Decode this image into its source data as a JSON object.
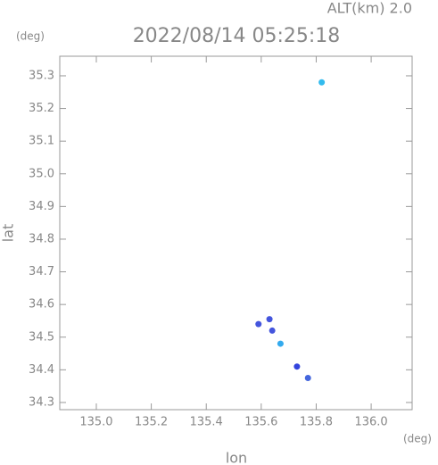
{
  "chart_data": {
    "type": "scatter",
    "annotation": "ALT(km) 2.0",
    "title": "2022/08/14 05:25:18",
    "y_unit": "(deg)",
    "x_unit": "(deg)",
    "xlabel": "lon",
    "ylabel": "lat",
    "x": [
      135.82,
      135.59,
      135.64,
      135.63,
      135.67,
      135.73,
      135.77
    ],
    "values": [
      35.28,
      34.54,
      34.52,
      34.555,
      34.48,
      34.41,
      34.375
    ],
    "colors": [
      "#33bbee",
      "#4455dd",
      "#4455dd",
      "#4455dd",
      "#33aaee",
      "#3344dd",
      "#4466dd"
    ],
    "xlim": [
      134.867,
      136.149
    ],
    "ylim": [
      34.278,
      35.36
    ],
    "xticks": [
      {
        "value": 135,
        "label": "135.0"
      },
      135.2,
      135.4,
      135.6,
      135.8,
      {
        "value": 136,
        "label": "136.0"
      }
    ],
    "yticks": [
      34.3,
      34.4,
      34.5,
      34.6,
      34.7,
      34.8,
      34.9,
      {
        "value": 35,
        "label": "35.0"
      },
      35.1,
      35.2,
      35.3
    ]
  }
}
